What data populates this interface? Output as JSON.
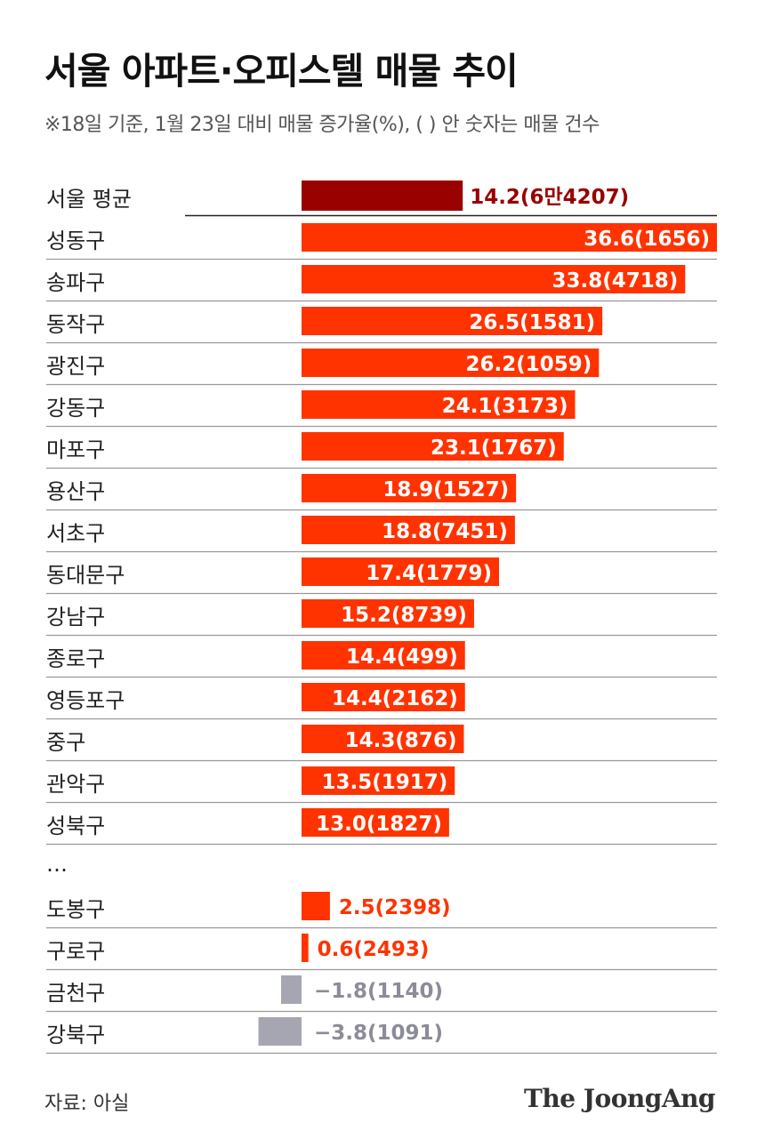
{
  "header": {
    "title": "서울 아파트·오피스텔 매물 추이",
    "subtitle": "※18일 기준, 1월 23일 대비 매물 증가율(%), ( ) 안 숫자는 매물 건수"
  },
  "footer": {
    "source": "자료: 아실",
    "logo": "The JoongAng"
  },
  "colors": {
    "average": "#990000",
    "positive": "#ff3300",
    "negative": "#a6a6b3",
    "label_on_bar": "#ffffff",
    "label_negative": "#8c8c99",
    "grid": "#999999",
    "text": "#222222"
  },
  "chart_data": {
    "type": "bar",
    "orientation": "horizontal",
    "average": {
      "category": "서울 평균",
      "value": 14.2,
      "label": "14.2(6만4207)"
    },
    "categories": [
      "성동구",
      "송파구",
      "동작구",
      "광진구",
      "강동구",
      "마포구",
      "용산구",
      "서초구",
      "동대문구",
      "강남구",
      "종로구",
      "영등포구",
      "중구",
      "관악구",
      "성북구",
      "도봉구",
      "구로구",
      "금천구",
      "강북구"
    ],
    "values": [
      36.6,
      33.8,
      26.5,
      26.2,
      24.1,
      23.1,
      18.9,
      18.8,
      17.4,
      15.2,
      14.4,
      14.4,
      14.3,
      13.5,
      13.0,
      2.5,
      0.6,
      -1.8,
      -3.8
    ],
    "labels": [
      "36.6(1656)",
      "33.8(4718)",
      "26.5(1581)",
      "26.2(1059)",
      "24.1(3173)",
      "23.1(1767)",
      "18.9(1527)",
      "18.8(7451)",
      "17.4(1779)",
      "15.2(8739)",
      "14.4(499)",
      "14.4(2162)",
      "14.3(876)",
      "13.5(1917)",
      "13.0(1827)",
      "2.5(2398)",
      "0.6(2493)",
      "−1.8(1140)",
      "−3.8(1091)"
    ],
    "ellipsis": "…",
    "ellipsis_after": "성북구",
    "unit": "%"
  }
}
